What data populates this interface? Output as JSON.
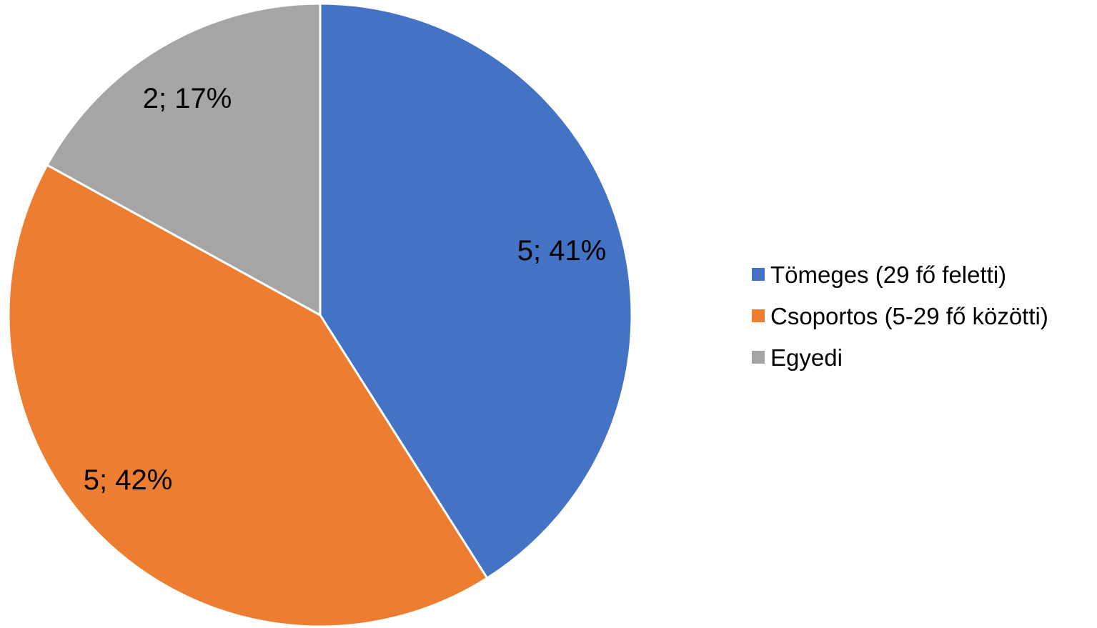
{
  "chart_data": {
    "type": "pie",
    "title": "",
    "categories": [
      "Tömeges (29 fő feletti)",
      "Csoportos (5-29 fő közötti)",
      "Egyedi"
    ],
    "values": [
      5,
      5,
      2
    ],
    "percentages": [
      41,
      42,
      17
    ],
    "data_labels": [
      "5; 41%",
      "5; 42%",
      "2; 17%"
    ],
    "colors": [
      "#4472C4",
      "#ED7D31",
      "#A5A5A5"
    ],
    "start_angle": "12 o'clock",
    "direction": "clockwise",
    "legend_position": "right"
  }
}
